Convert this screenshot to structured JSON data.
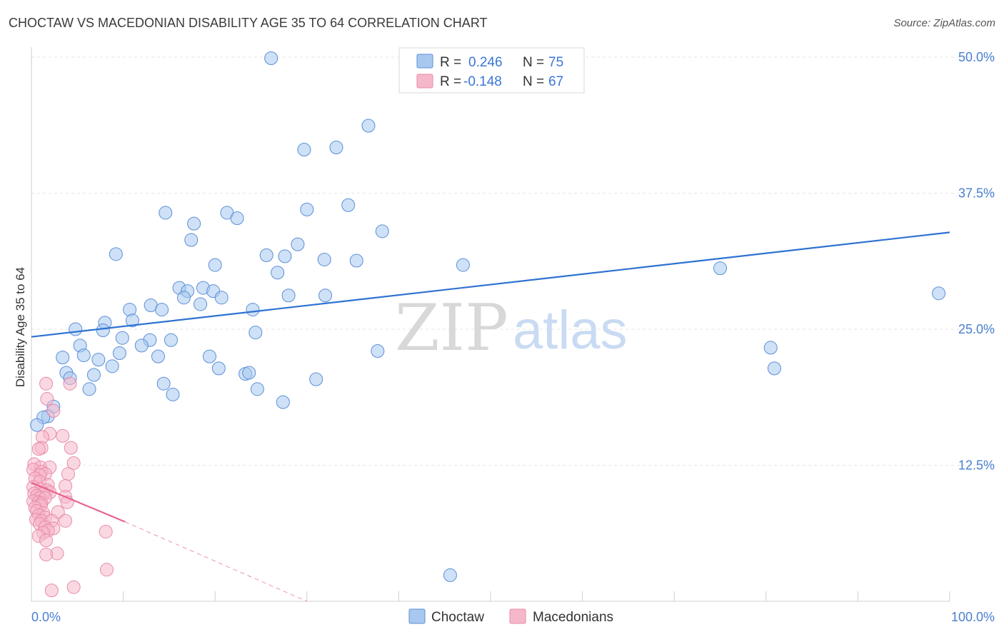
{
  "title": "CHOCTAW VS MACEDONIAN DISABILITY AGE 35 TO 64 CORRELATION CHART",
  "source": "Source: ZipAtlas.com",
  "watermark": {
    "zip": "ZIP",
    "atlas": "atlas"
  },
  "colors": {
    "blue_fill": "#a8c8f0",
    "blue_stroke": "#5b8fd6",
    "blue_line": "#2e72d2",
    "pink_fill": "#f5b8cb",
    "pink_stroke": "#e98aa8",
    "pink_line": "#e8638f",
    "grid": "#e6e6e6",
    "tick_text": "#4a7fd0"
  },
  "legend": {
    "rows": [
      {
        "r_label": "R =",
        "r_value": "0.246",
        "n_label": "N =",
        "n_value": "75"
      },
      {
        "r_label": "R =",
        "r_value": "-0.148",
        "n_label": "N =",
        "n_value": "67"
      }
    ]
  },
  "bottom_legend": [
    "Choctaw",
    "Macedonians"
  ],
  "chart_data": {
    "type": "scatter",
    "title": "CHOCTAW VS MACEDONIAN DISABILITY AGE 35 TO 64 CORRELATION CHART",
    "xlabel": "",
    "ylabel": "Disability Age 35 to 64",
    "xlim": [
      0,
      100
    ],
    "ylim": [
      0,
      50
    ],
    "x_tick_labels": [
      "0.0%",
      "100.0%"
    ],
    "y_ticks": [
      12.5,
      25.0,
      37.5,
      50.0
    ],
    "y_tick_labels": [
      "12.5%",
      "25.0%",
      "37.5%",
      "50.0%"
    ],
    "series": [
      {
        "name": "Choctaw",
        "r": 0.246,
        "n": 75,
        "trend": {
          "x": [
            0,
            100
          ],
          "y": [
            24.3,
            33.9
          ],
          "dashed_x": null
        },
        "points": [
          [
            26.1,
            49.9
          ],
          [
            36.7,
            43.7
          ],
          [
            29.7,
            41.5
          ],
          [
            33.2,
            41.7
          ],
          [
            34.5,
            36.4
          ],
          [
            14.6,
            35.7
          ],
          [
            21.3,
            35.7
          ],
          [
            17.7,
            34.7
          ],
          [
            22.4,
            35.2
          ],
          [
            30.0,
            36.0
          ],
          [
            17.4,
            33.2
          ],
          [
            38.2,
            34.0
          ],
          [
            29.0,
            32.8
          ],
          [
            9.2,
            31.9
          ],
          [
            25.6,
            31.8
          ],
          [
            27.6,
            31.7
          ],
          [
            31.9,
            31.4
          ],
          [
            35.4,
            31.3
          ],
          [
            47.0,
            30.9
          ],
          [
            20.0,
            30.9
          ],
          [
            26.8,
            30.2
          ],
          [
            75.0,
            30.6
          ],
          [
            98.8,
            28.3
          ],
          [
            16.1,
            28.8
          ],
          [
            17.0,
            28.5
          ],
          [
            18.7,
            28.8
          ],
          [
            19.8,
            28.5
          ],
          [
            16.6,
            27.9
          ],
          [
            20.7,
            27.9
          ],
          [
            18.4,
            27.3
          ],
          [
            28.0,
            28.1
          ],
          [
            32.0,
            28.1
          ],
          [
            13.0,
            27.2
          ],
          [
            10.7,
            26.8
          ],
          [
            14.2,
            26.8
          ],
          [
            24.1,
            26.8
          ],
          [
            11.0,
            25.8
          ],
          [
            8.0,
            25.6
          ],
          [
            4.8,
            25.0
          ],
          [
            7.8,
            24.9
          ],
          [
            24.4,
            24.7
          ],
          [
            9.9,
            24.2
          ],
          [
            12.9,
            24.0
          ],
          [
            15.2,
            24.0
          ],
          [
            12.0,
            23.5
          ],
          [
            5.3,
            23.5
          ],
          [
            9.6,
            22.8
          ],
          [
            5.7,
            22.6
          ],
          [
            3.4,
            22.4
          ],
          [
            7.3,
            22.2
          ],
          [
            13.8,
            22.5
          ],
          [
            19.4,
            22.5
          ],
          [
            8.8,
            21.6
          ],
          [
            20.4,
            21.4
          ],
          [
            80.5,
            23.3
          ],
          [
            80.9,
            21.4
          ],
          [
            37.7,
            23.0
          ],
          [
            3.8,
            21.0
          ],
          [
            4.2,
            20.5
          ],
          [
            6.8,
            20.8
          ],
          [
            23.3,
            20.9
          ],
          [
            23.7,
            21.0
          ],
          [
            31.0,
            20.4
          ],
          [
            14.4,
            20.0
          ],
          [
            6.3,
            19.5
          ],
          [
            24.6,
            19.5
          ],
          [
            15.4,
            19.0
          ],
          [
            27.4,
            18.3
          ],
          [
            2.4,
            17.9
          ],
          [
            1.8,
            17.0
          ],
          [
            1.3,
            16.9
          ],
          [
            0.6,
            16.2
          ],
          [
            45.6,
            2.4
          ]
        ]
      },
      {
        "name": "Macedonians",
        "r": -0.148,
        "n": 67,
        "trend": {
          "x": [
            0,
            10.2
          ],
          "y": [
            10.9,
            7.3
          ],
          "dashed_x": [
            10.2,
            30.0
          ],
          "dashed_y": [
            7.3,
            0.0
          ]
        },
        "points": [
          [
            1.6,
            20.0
          ],
          [
            4.2,
            20.0
          ],
          [
            1.7,
            18.6
          ],
          [
            2.4,
            17.5
          ],
          [
            2.0,
            15.4
          ],
          [
            1.2,
            15.1
          ],
          [
            3.4,
            15.2
          ],
          [
            1.1,
            14.1
          ],
          [
            0.8,
            14.0
          ],
          [
            4.3,
            14.1
          ],
          [
            4.6,
            12.7
          ],
          [
            0.3,
            12.6
          ],
          [
            1.0,
            12.3
          ],
          [
            2.0,
            12.3
          ],
          [
            0.2,
            12.1
          ],
          [
            1.1,
            11.9
          ],
          [
            1.5,
            11.7
          ],
          [
            0.9,
            11.6
          ],
          [
            4.0,
            11.7
          ],
          [
            0.4,
            11.3
          ],
          [
            0.9,
            11.0
          ],
          [
            1.8,
            10.7
          ],
          [
            3.7,
            10.6
          ],
          [
            0.2,
            10.5
          ],
          [
            1.0,
            10.3
          ],
          [
            1.7,
            10.2
          ],
          [
            2.0,
            10.0
          ],
          [
            0.3,
            9.9
          ],
          [
            1.3,
            9.9
          ],
          [
            0.6,
            9.7
          ],
          [
            0.9,
            9.5
          ],
          [
            1.5,
            9.5
          ],
          [
            3.7,
            9.6
          ],
          [
            0.2,
            9.2
          ],
          [
            0.8,
            9.1
          ],
          [
            1.1,
            9.0
          ],
          [
            3.9,
            9.1
          ],
          [
            1.0,
            8.8
          ],
          [
            0.4,
            8.6
          ],
          [
            0.6,
            8.3
          ],
          [
            1.3,
            8.1
          ],
          [
            2.9,
            8.2
          ],
          [
            0.8,
            7.9
          ],
          [
            1.5,
            7.7
          ],
          [
            0.5,
            7.5
          ],
          [
            1.1,
            7.4
          ],
          [
            2.2,
            7.4
          ],
          [
            3.7,
            7.4
          ],
          [
            0.9,
            7.1
          ],
          [
            1.5,
            6.8
          ],
          [
            2.4,
            6.7
          ],
          [
            1.8,
            6.5
          ],
          [
            1.3,
            6.3
          ],
          [
            8.1,
            6.4
          ],
          [
            0.8,
            6.0
          ],
          [
            1.6,
            5.6
          ],
          [
            2.8,
            4.4
          ],
          [
            1.6,
            4.3
          ],
          [
            8.2,
            2.9
          ],
          [
            4.6,
            1.3
          ],
          [
            2.2,
            1.0
          ]
        ]
      }
    ]
  }
}
